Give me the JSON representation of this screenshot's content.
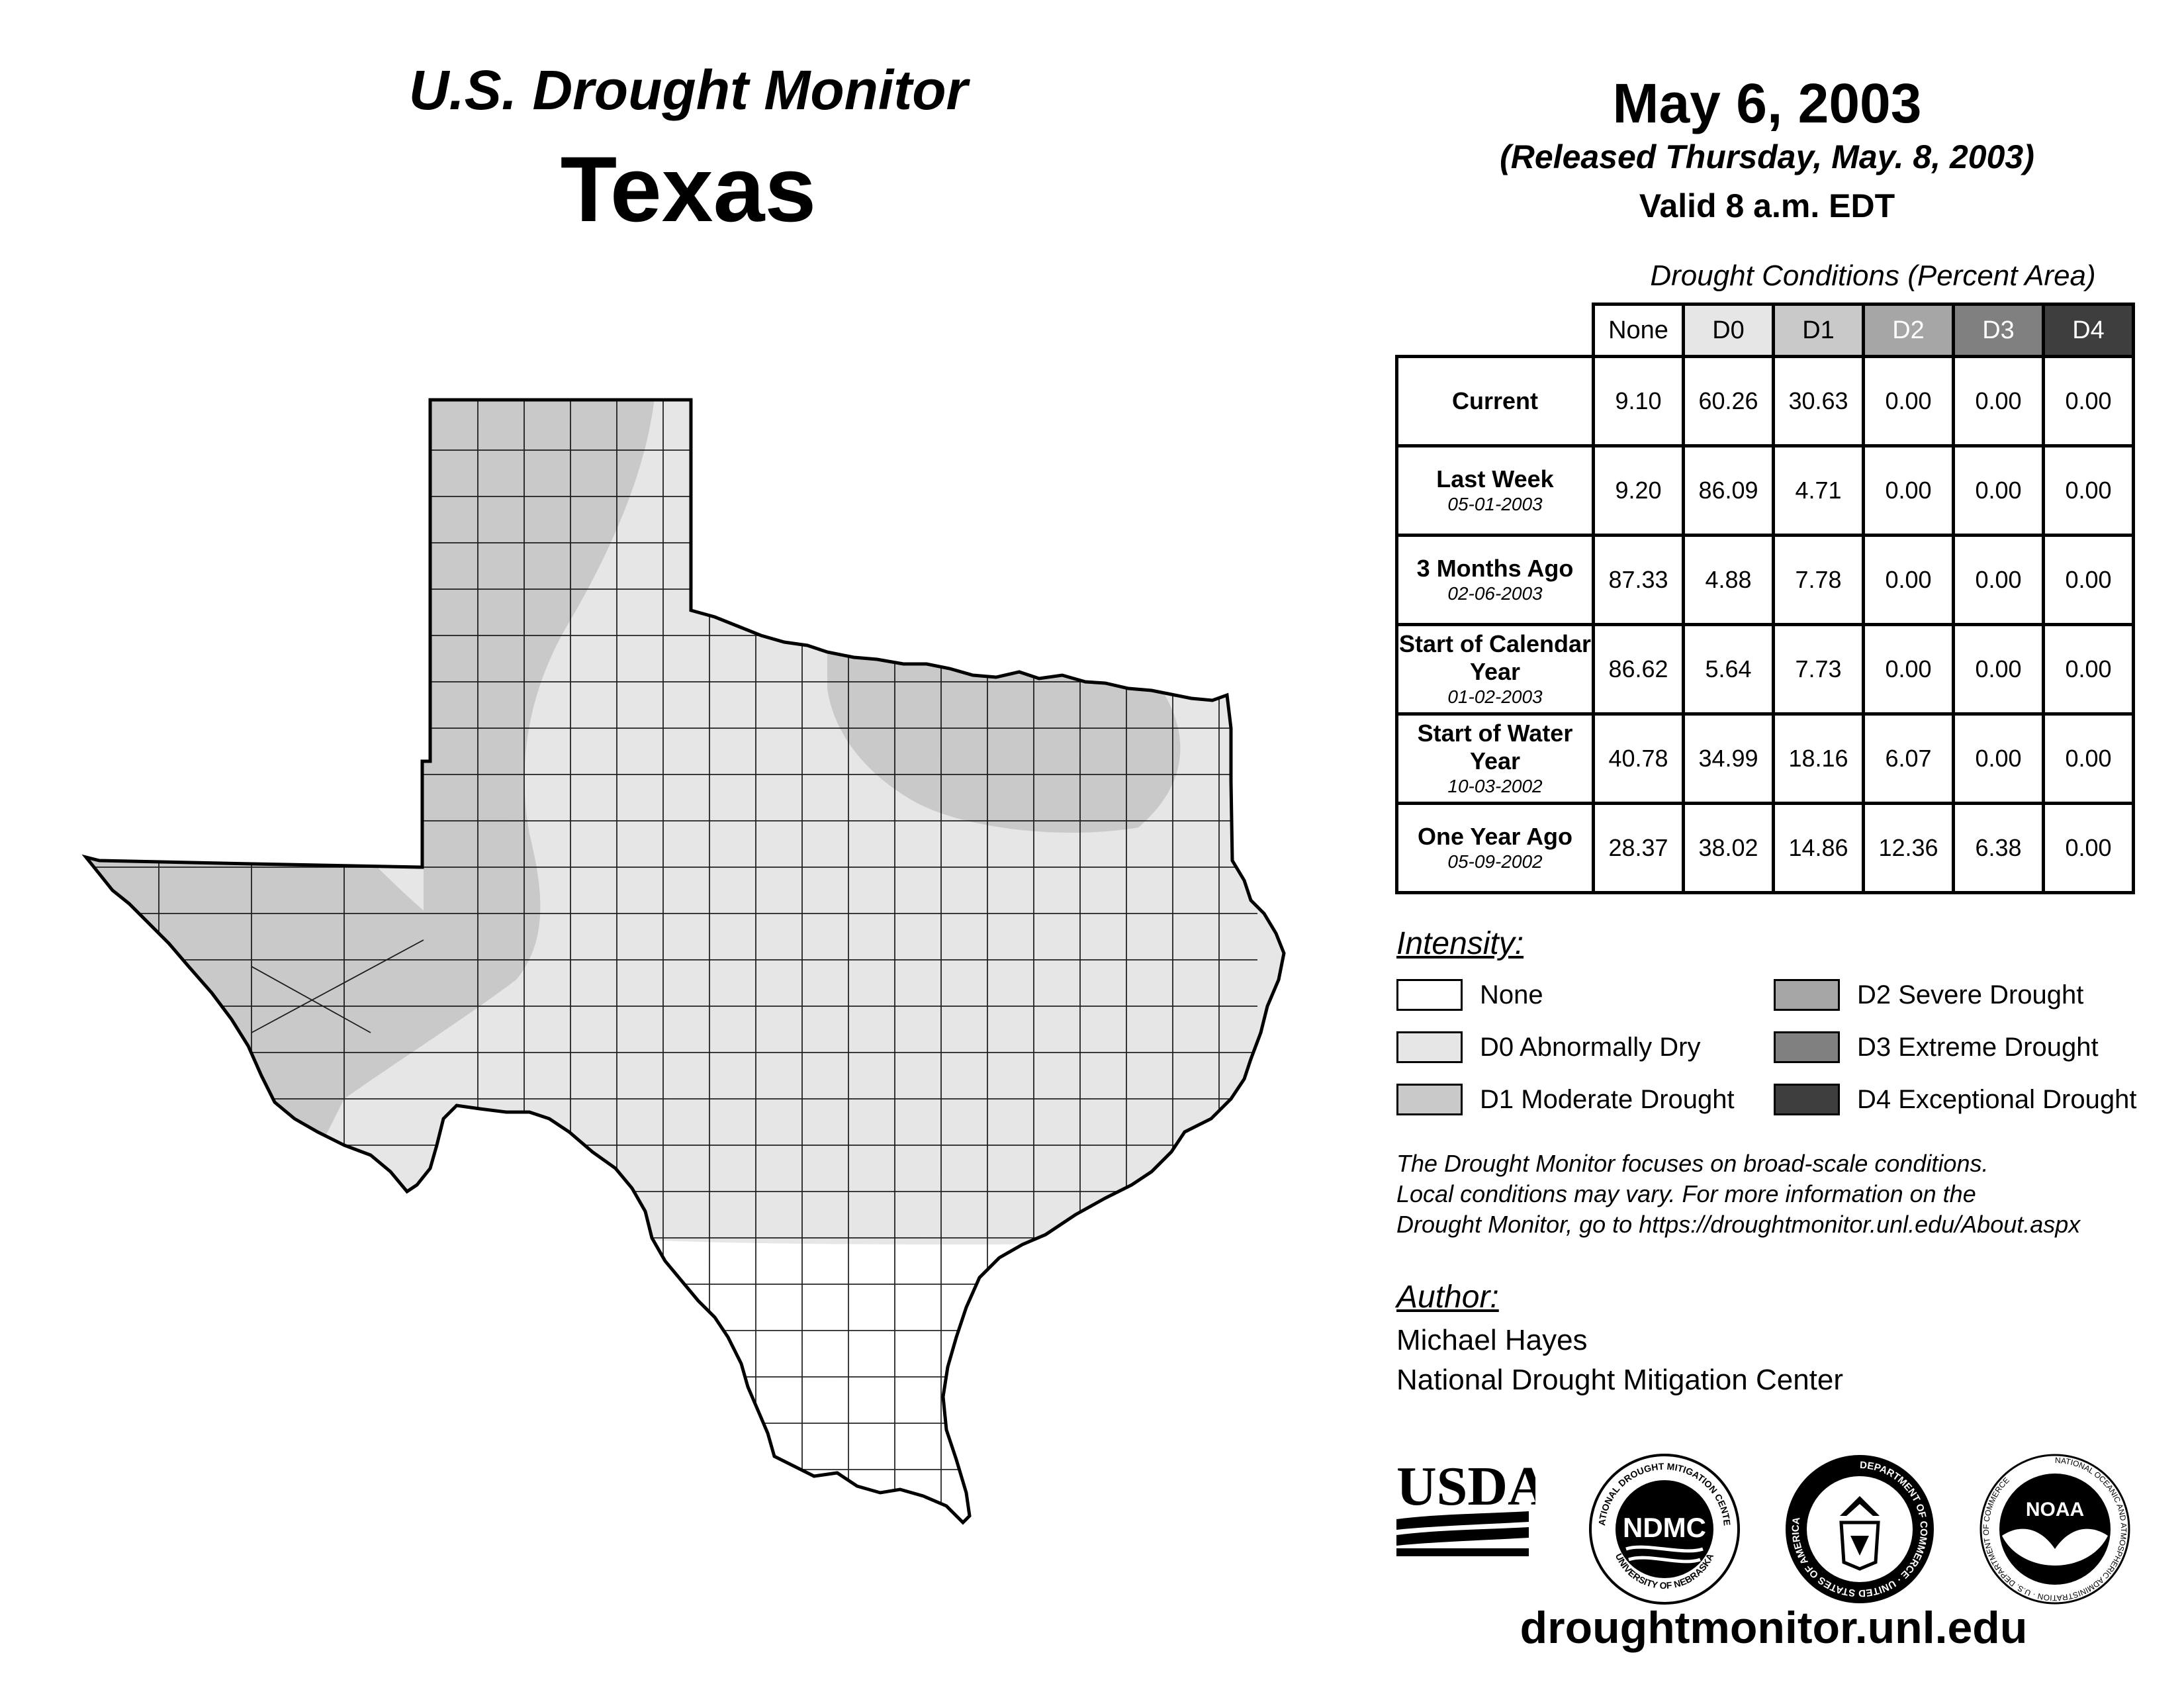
{
  "header": {
    "monitor_title": "U.S. Drought Monitor",
    "state": "Texas",
    "date": "May 6, 2003",
    "released": "(Released Thursday, May. 8, 2003)",
    "valid": "Valid 8 a.m. EDT"
  },
  "table": {
    "caption": "Drought Conditions (Percent Area)",
    "columns": [
      "None",
      "D0",
      "D1",
      "D2",
      "D3",
      "D4"
    ],
    "rows": [
      {
        "label": "Current",
        "date": "",
        "values": [
          "9.10",
          "60.26",
          "30.63",
          "0.00",
          "0.00",
          "0.00"
        ]
      },
      {
        "label": "Last Week",
        "date": "05-01-2003",
        "values": [
          "9.20",
          "86.09",
          "4.71",
          "0.00",
          "0.00",
          "0.00"
        ]
      },
      {
        "label": "3 Months Ago",
        "date": "02-06-2003",
        "values": [
          "87.33",
          "4.88",
          "7.78",
          "0.00",
          "0.00",
          "0.00"
        ]
      },
      {
        "label": "Start of Calendar Year",
        "date": "01-02-2003",
        "values": [
          "86.62",
          "5.64",
          "7.73",
          "0.00",
          "0.00",
          "0.00"
        ]
      },
      {
        "label": "Start of Water Year",
        "date": "10-03-2002",
        "values": [
          "40.78",
          "34.99",
          "18.16",
          "6.07",
          "0.00",
          "0.00"
        ]
      },
      {
        "label": "One Year Ago",
        "date": "05-09-2002",
        "values": [
          "28.37",
          "38.02",
          "14.86",
          "12.36",
          "6.38",
          "0.00"
        ]
      }
    ]
  },
  "legend": {
    "title": "Intensity:",
    "items": [
      {
        "label": "None",
        "color": "#ffffff"
      },
      {
        "label": "D0 Abnormally Dry",
        "color": "#e6e6e6"
      },
      {
        "label": "D1 Moderate Drought",
        "color": "#c9c9c9"
      },
      {
        "label": "D2 Severe Drought",
        "color": "#a6a6a6"
      },
      {
        "label": "D3 Extreme Drought",
        "color": "#808080"
      },
      {
        "label": "D4 Exceptional Drought",
        "color": "#3e3e3e"
      }
    ]
  },
  "note": {
    "line1": "The Drought Monitor focuses on broad-scale conditions.",
    "line2": "Local conditions may vary. For more information on the",
    "line3": "Drought Monitor, go to https://droughtmonitor.unl.edu/About.aspx"
  },
  "author": {
    "title": "Author:",
    "name": "Michael Hayes",
    "org": "National Drought Mitigation Center"
  },
  "logos": {
    "usda": "USDA",
    "ndmc": "NDMC",
    "ndmc_ring_top": "NATIONAL DROUGHT MITIGATION CENTER",
    "ndmc_ring_bottom": "UNIVERSITY OF NEBRASKA",
    "doc_ring": "DEPARTMENT OF COMMERCE · UNITED STATES OF AMERICA",
    "noaa": "NOAA",
    "noaa_ring": "NATIONAL OCEANIC AND ATMOSPHERIC ADMINISTRATION · U.S. DEPARTMENT OF COMMERCE"
  },
  "site": "droughtmonitor.unl.edu"
}
